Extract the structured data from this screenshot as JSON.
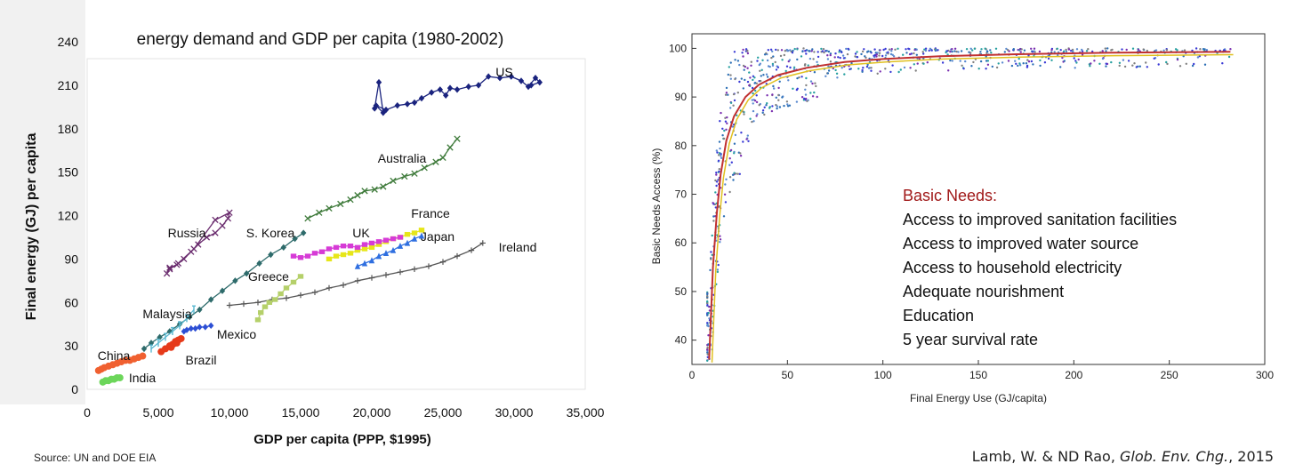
{
  "chart_data": [
    {
      "type": "line",
      "title": "energy demand and GDP per capita (1980-2002)",
      "xlabel": "GDP per capita (PPP, $1995)",
      "ylabel": "Final energy (GJ) per capita",
      "xlim": [
        0,
        35000
      ],
      "ylim": [
        0,
        240
      ],
      "xticks": [
        "0",
        "5,000",
        "10,000",
        "15,000",
        "20,000",
        "25,000",
        "30,000",
        "35,000"
      ],
      "yticks": [
        "0",
        "30",
        "60",
        "90",
        "120",
        "150",
        "180",
        "210",
        "240"
      ],
      "series": [
        {
          "name": "US",
          "color": "#1a237e",
          "marker": "diamond",
          "x": [
            20200,
            20500,
            20800,
            20300,
            21000,
            21800,
            22500,
            23000,
            23500,
            24200,
            24800,
            25200,
            25500,
            26000,
            26800,
            27500,
            28200,
            29000,
            29800,
            30500,
            31000,
            31500,
            31800,
            31200
          ],
          "y": [
            194,
            212,
            191,
            196,
            193,
            196,
            197,
            198,
            201,
            205,
            207,
            203,
            208,
            207,
            209,
            210,
            216,
            215,
            216,
            213,
            209,
            215,
            212,
            210
          ]
        },
        {
          "name": "Australia",
          "color": "#3e7a3a",
          "marker": "x",
          "x": [
            15500,
            16300,
            17000,
            17800,
            18500,
            19000,
            19500,
            20200,
            20800,
            21500,
            22300,
            23000,
            23700,
            24500,
            25000,
            25500,
            26000
          ],
          "y": [
            118,
            122,
            125,
            128,
            131,
            134,
            137,
            138,
            140,
            144,
            147,
            149,
            153,
            157,
            160,
            167,
            173
          ]
        },
        {
          "name": "Russia",
          "color": "#6a2c6e",
          "marker": "x",
          "x": [
            5600,
            5800,
            6300,
            6800,
            7300,
            7800,
            8400,
            9000,
            9500,
            9900,
            10000,
            9000,
            7500,
            6400,
            5800
          ],
          "y": [
            80,
            84,
            86,
            90,
            95,
            100,
            105,
            108,
            113,
            118,
            122,
            117,
            97,
            87,
            83
          ]
        },
        {
          "name": "S. Korea",
          "color": "#2e6b6b",
          "marker": "diamond",
          "x": [
            4000,
            4500,
            5100,
            5800,
            6500,
            7200,
            7900,
            8700,
            9500,
            10400,
            11200,
            12100,
            12900,
            13800,
            14600,
            15200
          ],
          "y": [
            28,
            32,
            36,
            40,
            45,
            50,
            55,
            62,
            68,
            75,
            80,
            87,
            93,
            98,
            104,
            108
          ]
        },
        {
          "name": "France",
          "color": "#e6e619",
          "marker": "square",
          "x": [
            17000,
            17500,
            18000,
            18500,
            19000,
            19500,
            20000,
            20500,
            21000,
            21500,
            22000,
            22500,
            23000,
            23500
          ],
          "y": [
            90,
            92,
            93,
            94,
            96,
            97,
            98,
            100,
            102,
            104,
            105,
            107,
            108,
            110
          ]
        },
        {
          "name": "UK",
          "color": "#d63bd6",
          "marker": "square",
          "x": [
            14500,
            15000,
            15500,
            16000,
            16500,
            17000,
            17500,
            18000,
            18500,
            19000,
            19500,
            20000,
            20500,
            21000,
            21500,
            22000
          ],
          "y": [
            92,
            91,
            92,
            94,
            95,
            97,
            98,
            99,
            99,
            98,
            100,
            101,
            102,
            103,
            104,
            105
          ]
        },
        {
          "name": "Japan",
          "color": "#2f6fe0",
          "marker": "triangle",
          "x": [
            19000,
            19500,
            20000,
            20500,
            21000,
            21500,
            22000,
            22500,
            23000,
            23500
          ],
          "y": [
            85,
            87,
            89,
            92,
            94,
            96,
            99,
            101,
            104,
            106
          ]
        },
        {
          "name": "Ireland",
          "color": "#555555",
          "marker": "plus",
          "x": [
            10000,
            11000,
            12000,
            13000,
            14000,
            15000,
            16000,
            17000,
            18000,
            19000,
            20000,
            21000,
            22000,
            23000,
            24000,
            25000,
            26000,
            27000,
            27800
          ],
          "y": [
            58,
            59,
            60,
            62,
            63,
            65,
            67,
            70,
            72,
            75,
            77,
            79,
            81,
            83,
            85,
            88,
            92,
            96,
            101
          ]
        },
        {
          "name": "Greece",
          "color": "#b5d06a",
          "marker": "square",
          "x": [
            12000,
            12200,
            12500,
            12800,
            13200,
            13600,
            14000,
            14500,
            15000
          ],
          "y": [
            48,
            53,
            57,
            60,
            62,
            66,
            70,
            74,
            78
          ]
        },
        {
          "name": "Malaysia",
          "color": "#5ab8d0",
          "marker": "bar",
          "x": [
            4500,
            5000,
            5500,
            6000,
            6500,
            7000,
            7500
          ],
          "y": [
            28,
            32,
            36,
            40,
            44,
            49,
            55
          ]
        },
        {
          "name": "Mexico",
          "color": "#2d4fd4",
          "marker": "diamond",
          "x": [
            6800,
            7000,
            7300,
            7600,
            7900,
            8300,
            8700
          ],
          "y": [
            40,
            41,
            42,
            42,
            43,
            43,
            44
          ]
        },
        {
          "name": "China",
          "color": "#f06030",
          "marker": "circle",
          "x": [
            800,
            1000,
            1200,
            1500,
            1800,
            2100,
            2400,
            2700,
            3000,
            3300,
            3600,
            3900
          ],
          "y": [
            13,
            14,
            15,
            16,
            17,
            18,
            19,
            20,
            20,
            21,
            22,
            23
          ]
        },
        {
          "name": "Brazil",
          "color": "#e63a1a",
          "marker": "circle",
          "x": [
            5200,
            5500,
            5800,
            6000,
            6200,
            6400,
            6600,
            6300,
            5900
          ],
          "y": [
            26,
            28,
            30,
            31,
            33,
            34,
            35,
            32,
            29
          ]
        },
        {
          "name": "India",
          "color": "#6cd65a",
          "marker": "circle",
          "x": [
            1100,
            1300,
            1500,
            1700,
            1900,
            2100,
            2300
          ],
          "y": [
            5,
            6,
            6,
            7,
            7,
            8,
            8
          ]
        }
      ]
    },
    {
      "type": "scatter",
      "title": "",
      "xlabel": "Final Energy Use (GJ/capita)",
      "ylabel": "Basic Needs Access (%)",
      "xlim": [
        0,
        300
      ],
      "ylim": [
        35,
        103
      ],
      "xticks": [
        "0",
        "50",
        "100",
        "150",
        "200",
        "250",
        "300"
      ],
      "yticks": [
        "40",
        "50",
        "60",
        "70",
        "80",
        "90",
        "100"
      ],
      "fit_curve": {
        "x": [
          9,
          11,
          13,
          15,
          18,
          22,
          28,
          35,
          45,
          60,
          80,
          100,
          130,
          170,
          220,
          282
        ],
        "y": [
          36,
          55,
          66,
          74,
          81,
          86,
          90,
          92.5,
          94.5,
          96,
          97.2,
          97.8,
          98.4,
          98.8,
          99.1,
          99.3
        ]
      },
      "series": [
        {
          "name": "sanitation",
          "color": "#3a3ad6"
        },
        {
          "name": "water",
          "color": "#26a0a0"
        },
        {
          "name": "electricity",
          "color": "#7a2fb0"
        },
        {
          "name": "nourishment",
          "color": "#5a8ad0"
        },
        {
          "name": "education",
          "color": "#808080"
        },
        {
          "name": "survival",
          "color": "#2c6fb5"
        }
      ],
      "annotation": {
        "heading": "Basic Needs:",
        "heading_color": "#a01818",
        "items": [
          "Access to improved sanitation facilities",
          "Access to improved water source",
          "Access to household electricity",
          "Adequate nourishment",
          "Education",
          "5 year survival rate"
        ]
      }
    }
  ],
  "footer": {
    "source": "Source: UN and DOE EIA",
    "cite_authors": "Lamb, W. & ND Rao,",
    "cite_journal": "Glob. Env. Chg.",
    "cite_year": ", 2015"
  }
}
